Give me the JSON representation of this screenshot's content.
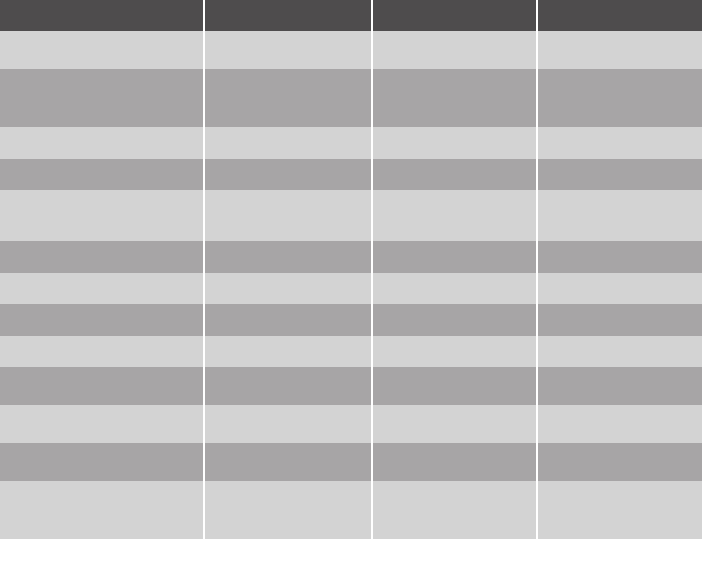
{
  "colors": {
    "header": "#4e4c4d",
    "row_light": "#d3d3d3",
    "row_dark": "#a7a5a6",
    "divider": "#ffffff"
  },
  "table": {
    "headers": [
      "",
      "",
      "",
      ""
    ],
    "rows": [
      {
        "shade": "light",
        "cells": [
          "",
          "",
          "",
          ""
        ]
      },
      {
        "shade": "dark",
        "cells": [
          "",
          "",
          "",
          ""
        ]
      },
      {
        "shade": "light",
        "cells": [
          "",
          "",
          "",
          ""
        ]
      },
      {
        "shade": "dark",
        "cells": [
          "",
          "",
          "",
          ""
        ]
      },
      {
        "shade": "light",
        "cells": [
          "",
          "",
          "",
          ""
        ]
      },
      {
        "shade": "dark",
        "cells": [
          "",
          "",
          "",
          ""
        ]
      },
      {
        "shade": "light",
        "cells": [
          "",
          "",
          "",
          ""
        ]
      },
      {
        "shade": "dark",
        "cells": [
          "",
          "",
          "",
          ""
        ]
      },
      {
        "shade": "light",
        "cells": [
          "",
          "",
          "",
          ""
        ]
      },
      {
        "shade": "dark",
        "cells": [
          "",
          "",
          "",
          ""
        ]
      },
      {
        "shade": "light",
        "cells": [
          "",
          "",
          "",
          ""
        ]
      },
      {
        "shade": "dark",
        "cells": [
          "",
          "",
          "",
          ""
        ]
      },
      {
        "shade": "light",
        "cells": [
          "",
          "",
          "",
          ""
        ]
      }
    ]
  }
}
